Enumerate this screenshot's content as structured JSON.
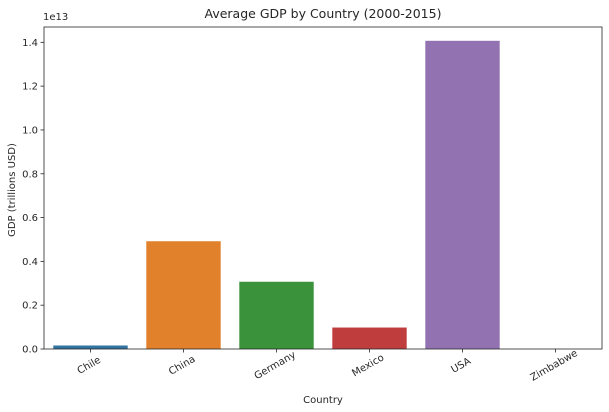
{
  "chart_data": {
    "type": "bar",
    "title": "Average GDP by Country (2000-2015)",
    "xlabel": "Country",
    "ylabel": "GDP (trillions USD)",
    "y_offset_label": "1e13",
    "categories": [
      "Chile",
      "China",
      "Germany",
      "Mexico",
      "USA",
      "Zimbabwe"
    ],
    "values": [
      0.016,
      0.492,
      0.307,
      0.098,
      1.407,
      0.0
    ],
    "colors": [
      "#3274a1",
      "#e1812c",
      "#3a923a",
      "#c03d3e",
      "#9372b2",
      "#845b53"
    ],
    "ylim": [
      0,
      1.47
    ],
    "yticks": [
      0.0,
      0.2,
      0.4,
      0.6,
      0.8,
      1.0,
      1.2,
      1.4
    ],
    "ytick_labels": [
      "0.0",
      "0.2",
      "0.4",
      "0.6",
      "0.8",
      "1.0",
      "1.2",
      "1.4"
    ],
    "grid": false,
    "legend": "none",
    "xtick_rotation": "30"
  }
}
